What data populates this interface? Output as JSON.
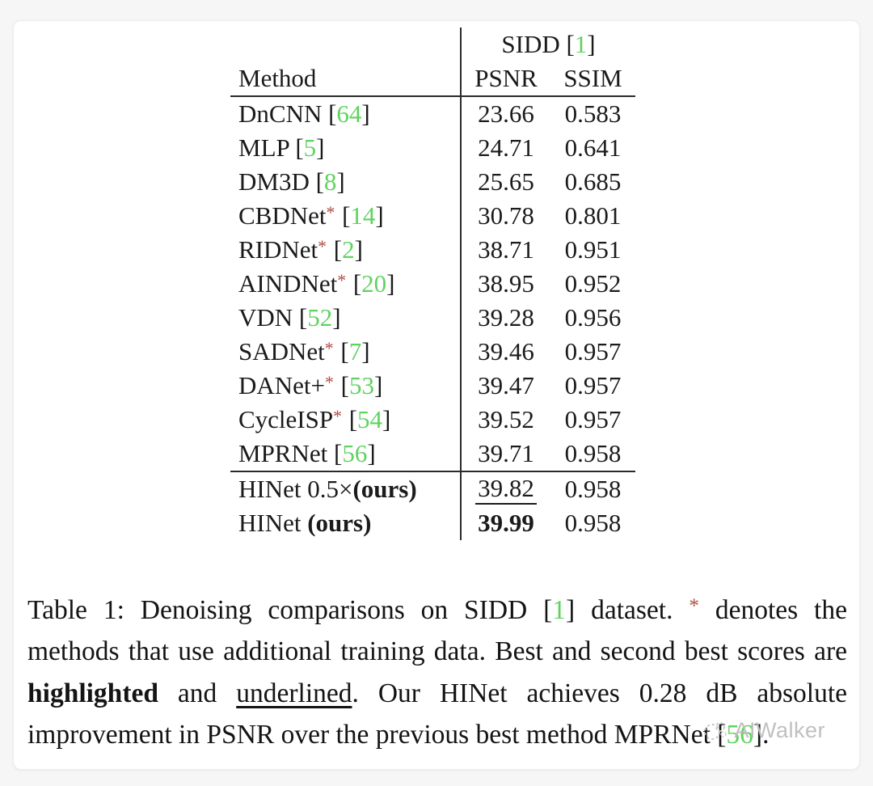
{
  "colors": {
    "text": "#1b1b1b",
    "citation_green": "#5fd35f",
    "star_red": "#b04a42",
    "rule": "#2a2a2a",
    "watermark_gray": "#bdbdbd"
  },
  "table": {
    "dataset_header": {
      "name": "SIDD",
      "cite": "1"
    },
    "columns": {
      "method": "Method",
      "psnr": "PSNR",
      "ssim": "SSIM"
    },
    "rows": [
      {
        "name": "DnCNN",
        "star": false,
        "cite": "64",
        "psnr": "23.66",
        "ssim": "0.583"
      },
      {
        "name": "MLP",
        "star": false,
        "cite": "5",
        "psnr": "24.71",
        "ssim": "0.641"
      },
      {
        "name": "DM3D",
        "star": false,
        "cite": "8",
        "psnr": "25.65",
        "ssim": "0.685"
      },
      {
        "name": "CBDNet",
        "star": true,
        "cite": "14",
        "psnr": "30.78",
        "ssim": "0.801"
      },
      {
        "name": "RIDNet",
        "star": true,
        "cite": "2",
        "psnr": "38.71",
        "ssim": "0.951"
      },
      {
        "name": "AINDNet",
        "star": true,
        "cite": "20",
        "psnr": "38.95",
        "ssim": "0.952"
      },
      {
        "name": "VDN",
        "star": false,
        "cite": "52",
        "psnr": "39.28",
        "ssim": "0.956"
      },
      {
        "name": "SADNet",
        "star": true,
        "cite": "7",
        "psnr": "39.46",
        "ssim": "0.957"
      },
      {
        "name": "DANet+",
        "star": true,
        "cite": "53",
        "psnr": "39.47",
        "ssim": "0.957"
      },
      {
        "name": "CycleISP",
        "star": true,
        "cite": "54",
        "psnr": "39.52",
        "ssim": "0.957"
      },
      {
        "name": "MPRNet",
        "star": false,
        "cite": "56",
        "psnr": "39.71",
        "ssim": "0.958"
      }
    ],
    "ours_rows": [
      {
        "name": "HINet 0.5×",
        "bold_suffix": "(ours)",
        "psnr": "39.82",
        "psnr_style": "underline",
        "ssim": "0.958"
      },
      {
        "name": "HINet ",
        "bold_suffix": "(ours)",
        "psnr": "39.99",
        "psnr_style": "bold",
        "ssim": "0.958"
      }
    ]
  },
  "caption": {
    "segments": [
      {
        "t": "Table 1: Denoising comparisons on SIDD [",
        "s": "n"
      },
      {
        "t": "1",
        "s": "g"
      },
      {
        "t": "] dataset. ",
        "s": "n"
      },
      {
        "t": "*",
        "s": "r"
      },
      {
        "t": " denotes the methods that use additional training data. Best and second best scores are ",
        "s": "n"
      },
      {
        "t": "highlighted",
        "s": "b"
      },
      {
        "t": " and ",
        "s": "n"
      },
      {
        "t": "underlined",
        "s": "u"
      },
      {
        "t": ". Our HINet achieves 0.28 dB absolute improvement in PSNR over the previous best method MPRNet [",
        "s": "n"
      },
      {
        "t": "56",
        "s": "g"
      },
      {
        "t": "].",
        "s": "n"
      }
    ]
  },
  "watermark": {
    "label": "AIWalker"
  }
}
